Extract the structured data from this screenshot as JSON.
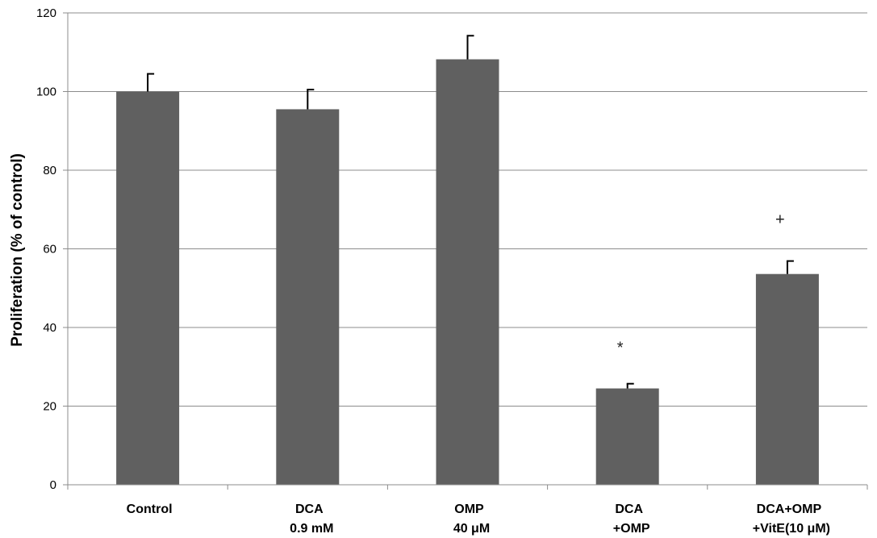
{
  "chart_data": {
    "type": "bar",
    "title": "",
    "xlabel": "",
    "ylabel": "Proliferation (% of control)",
    "ylim": [
      0,
      120
    ],
    "yticks": [
      0,
      20,
      40,
      60,
      80,
      100,
      120
    ],
    "grid": true,
    "categories": [
      [
        "Control"
      ],
      [
        "DCA",
        "0.9 mM"
      ],
      [
        "OMP",
        "40 μM"
      ],
      [
        "DCA",
        "+OMP"
      ],
      [
        "DCA+OMP",
        "+VitE(10 μM)"
      ]
    ],
    "values": [
      100,
      95.5,
      108.2,
      24.5,
      53.6
    ],
    "errors": [
      4.5,
      5,
      6,
      1.2,
      3.3
    ],
    "annotations": [
      "",
      "",
      "",
      "*",
      "+"
    ],
    "bar_color": "#606060"
  }
}
